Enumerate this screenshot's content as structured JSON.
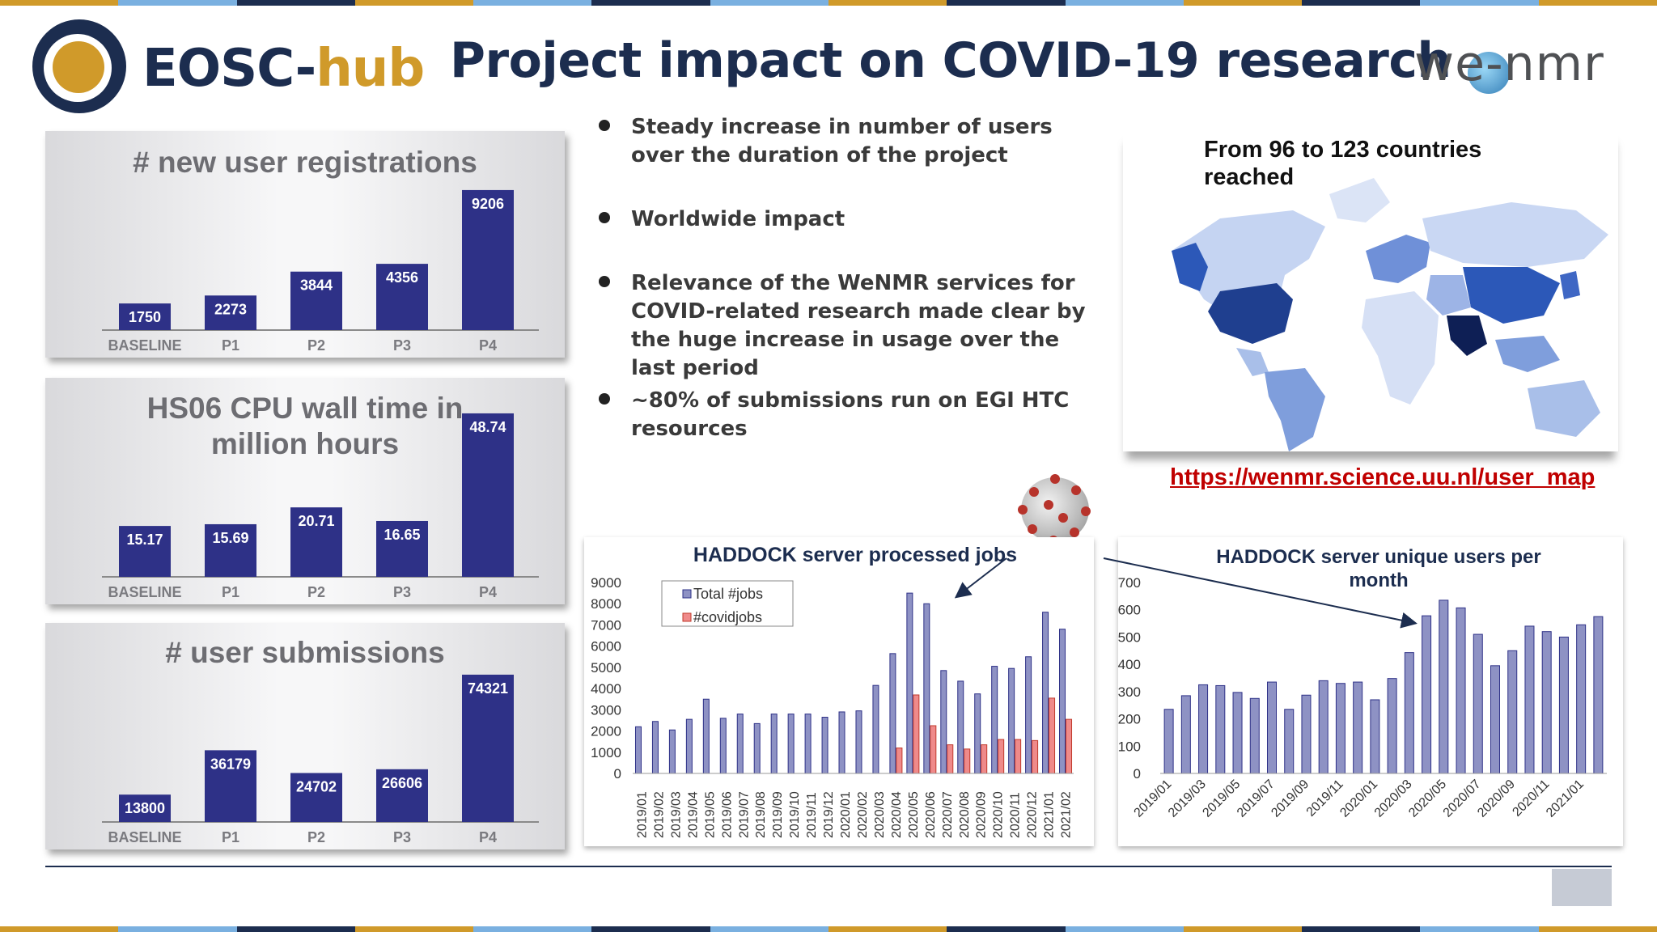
{
  "header": {
    "logo_text_1": "EOSC-",
    "logo_text_2": "hub",
    "title": "Project impact on COVID-19 research",
    "logo_right_text": "we-nmr"
  },
  "colors": {
    "navy": "#1c2d4f",
    "gold": "#d09a2a",
    "bar_navy": "#2e3187",
    "bar_lavender": "#8e92c4",
    "bar_covid": "#ef8a8a",
    "link_red": "#c00000"
  },
  "bullets": [
    {
      "text": "Steady increase in number of users over the duration of the project"
    },
    {
      "text": "Worldwide impact"
    },
    {
      "text": "Relevance of the WeNMR services for COVID-related research made clear by the huge increase in usage over the last period"
    },
    {
      "text": "~80% of submissions run on EGI HTC resources"
    }
  ],
  "map": {
    "heading": "From 96 to 123 countries reached",
    "link": "https://wenmr.science.uu.nl/user_map"
  },
  "chart_data": [
    {
      "type": "bar",
      "title": "# new user registrations",
      "categories": [
        "BASELINE",
        "P1",
        "P2",
        "P3",
        "P4"
      ],
      "values": [
        1750,
        2273,
        3844,
        4356,
        9206
      ],
      "data_labels": [
        "1750",
        "2273",
        "3844",
        "4356",
        "9206"
      ],
      "ylim": [
        0,
        10000
      ],
      "grid": false,
      "legend": "none"
    },
    {
      "type": "bar",
      "title": "HS06 CPU wall time in million hours",
      "categories": [
        "BASELINE",
        "P1",
        "P2",
        "P3",
        "P4"
      ],
      "values": [
        15.17,
        15.69,
        20.71,
        16.65,
        48.74
      ],
      "data_labels": [
        "15.17",
        "15.69",
        "20.71",
        "16.65",
        "48.74"
      ],
      "ylim": [
        0,
        55
      ],
      "grid": false,
      "legend": "none"
    },
    {
      "type": "bar",
      "title": "# user submissions",
      "categories": [
        "BASELINE",
        "P1",
        "P2",
        "P3",
        "P4"
      ],
      "values": [
        13800,
        36179,
        24702,
        26606,
        74321
      ],
      "data_labels": [
        "13800",
        "36179",
        "24702",
        "26606",
        "74321"
      ],
      "ylim": [
        0,
        80000
      ],
      "grid": false,
      "legend": "none"
    },
    {
      "type": "bar",
      "title": "HADDOCK server processed jobs",
      "categories": [
        "2019/01",
        "2019/02",
        "2019/03",
        "2019/04",
        "2019/05",
        "2019/06",
        "2019/07",
        "2019/08",
        "2019/09",
        "2019/10",
        "2019/11",
        "2019/12",
        "2020/01",
        "2020/02",
        "2020/03",
        "2020/04",
        "2020/05",
        "2020/06",
        "2020/07",
        "2020/08",
        "2020/09",
        "2020/10",
        "2020/11",
        "2020/12",
        "2021/01",
        "2021/02"
      ],
      "series": [
        {
          "name": "Total #jobs",
          "values": [
            2200,
            2450,
            2050,
            2550,
            3500,
            2600,
            2800,
            2350,
            2800,
            2800,
            2800,
            2650,
            2900,
            2950,
            4150,
            5650,
            8500,
            8000,
            4850,
            4350,
            3750,
            5050,
            4950,
            5500,
            7600,
            6800
          ]
        },
        {
          "name": "#covidjobs",
          "values": [
            0,
            0,
            0,
            0,
            0,
            0,
            0,
            0,
            0,
            0,
            0,
            0,
            0,
            0,
            0,
            1200,
            3700,
            2250,
            1350,
            1150,
            1350,
            1600,
            1600,
            1550,
            3550,
            2550
          ]
        }
      ],
      "yticks": [
        "0",
        "1000",
        "2000",
        "3000",
        "4000",
        "5000",
        "6000",
        "7000",
        "8000",
        "9000"
      ],
      "ylim": [
        0,
        9000
      ],
      "legend": "top-left",
      "grid": false
    },
    {
      "type": "bar",
      "title": "HADDOCK server unique users per month",
      "categories": [
        "2019/01",
        "2019/02",
        "2019/03",
        "2019/04",
        "2019/05",
        "2019/06",
        "2019/07",
        "2019/08",
        "2019/09",
        "2019/10",
        "2019/11",
        "2019/12",
        "2020/01",
        "2020/02",
        "2020/03",
        "2020/04",
        "2020/05",
        "2020/06",
        "2020/07",
        "2020/08",
        "2020/09",
        "2020/10",
        "2020/11",
        "2020/12",
        "2021/01",
        "2021/02"
      ],
      "tick_labels": [
        "2019/01",
        "2019/03",
        "2019/05",
        "2019/07",
        "2019/09",
        "2019/11",
        "2020/01",
        "2020/03",
        "2020/05",
        "2020/07",
        "2020/09",
        "2020/11",
        "2021/01"
      ],
      "values": [
        235,
        285,
        325,
        322,
        297,
        275,
        335,
        235,
        287,
        340,
        330,
        335,
        270,
        348,
        443,
        578,
        635,
        607,
        510,
        395,
        450,
        540,
        520,
        500,
        545,
        575
      ],
      "yticks": [
        "0",
        "100",
        "200",
        "300",
        "400",
        "500",
        "600",
        "700"
      ],
      "ylim": [
        0,
        700
      ],
      "legend": "none",
      "grid": false
    }
  ]
}
